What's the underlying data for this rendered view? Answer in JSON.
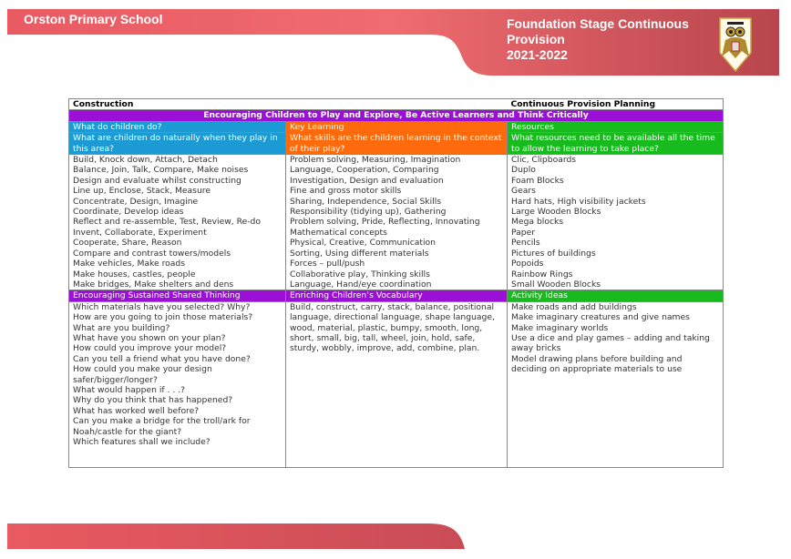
{
  "header": {
    "school_name": "Orston Primary School",
    "title_lines": [
      "Foundation Stage Continuous",
      "Provision",
      "2021-2022"
    ],
    "crest": "owl-school-crest",
    "brand_color": "#e0565e"
  },
  "table": {
    "topic": "Construction",
    "doc_type": "Continuous Provision Planning",
    "banner": "Encouraging Children to Play and Explore, Be Active Learners and Think Critically",
    "columns": [
      {
        "heading": "What do children do?",
        "question": "What are children do naturally when they play in this area?",
        "color": "#1c9ad3"
      },
      {
        "heading": "Key Learning",
        "question": "What skills are the children learning in the context of their play?",
        "color": "#ff6a0c"
      },
      {
        "heading": "Resources",
        "question": "What resources need to be available all the time to allow the learning to take place?",
        "color": "#18bb1d"
      }
    ],
    "what_children_do": [
      "Build, Knock down, Attach, Detach",
      "Balance, Join, Talk, Compare, Make noises",
      "Design and evaluate whilst constructing",
      "Line up, Enclose, Stack, Measure",
      "Concentrate, Design, Imagine",
      "Coordinate, Develop ideas",
      "Reflect and re-assemble, Test, Review, Re-do",
      "Invent, Collaborate, Experiment",
      "Cooperate, Share, Reason",
      "Compare and contrast towers/models",
      "Make vehicles, Make roads",
      "Make houses, castles, people",
      "Make bridges, Make shelters and dens"
    ],
    "key_learning": [
      "Problem solving, Measuring, Imagination",
      "Language, Cooperation, Comparing",
      "Investigation, Design and evaluation",
      "Fine and gross motor skills",
      "Sharing, Independence, Social Skills",
      "Responsibility (tidying up), Gathering",
      "Problem solving, Pride, Reflecting, Innovating",
      "Mathematical concepts",
      "Physical, Creative, Communication",
      "Sorting, Using different materials",
      "Forces – pull/push",
      "Collaborative play, Thinking skills",
      "Language, Hand/eye coordination"
    ],
    "resources": [
      "Clic, Clipboards",
      "Duplo",
      "Foam Blocks",
      "Gears",
      "Hard hats, High visibility jackets",
      "Large Wooden Blocks",
      "Mega blocks",
      "Paper",
      "Pencils",
      "Pictures of buildings",
      "Popoids",
      "Rainbow Rings",
      "Small Wooden Blocks"
    ],
    "lower_headings": [
      "Encouraging Sustained Shared Thinking",
      "Enriching Children’s Vocabulary",
      "Activity Ideas"
    ],
    "sustained_thinking": [
      "Which materials have you selected?  Why?",
      "How are you going to join those materials?",
      "What are you building?",
      "What have you shown on your plan?",
      "How could you improve your model?",
      "Can you tell a friend what you have done?",
      "How could you make your design safer/bigger/longer?",
      "What would happen if . . .?",
      "Why do you think that has happened?",
      "What has worked well before?",
      "Can you make a bridge for the troll/ark for Noah/castle for the giant?",
      "Which features shall we include?"
    ],
    "vocabulary": "Build, construct, carry, stack, balance, positional language, directional language, shape language, wood, material, plastic, bumpy, smooth, long, short, small, big, tall, wheel, join, hold, safe, sturdy, wobbly, improve, add, combine, plan.",
    "activity_ideas": [
      "Make roads and add buildings",
      "Make imaginary creatures and give names",
      "Make imaginary worlds",
      "Use a dice and play games – adding and taking away bricks",
      "Model drawing plans before building and deciding on appropriate materials to use"
    ]
  }
}
